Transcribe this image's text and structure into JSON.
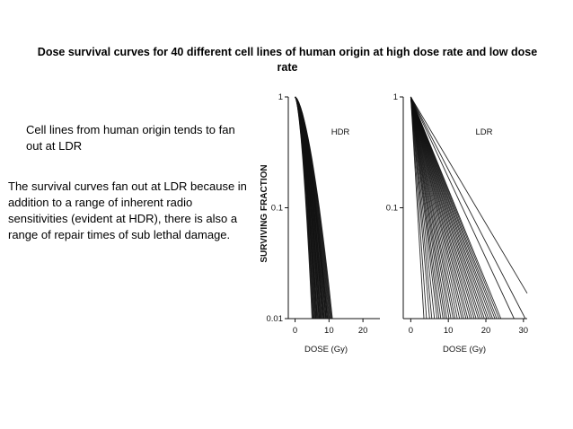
{
  "slide": {
    "title": "Dose survival curves for 40 different cell lines of human origin at high dose rate and low dose rate",
    "note_fan_out": "Cell lines from human origin tends to fan out at LDR",
    "note_explanation": "The survival curves fan out at LDR because in addition to a range of inherent radio sensitivities (evident at HDR), there is also a range of repair times of sub lethal damage."
  },
  "chart_data": [
    {
      "type": "line",
      "panel_label": "HDR",
      "xlabel": "DOSE (Gy)",
      "ylabel": "SURVIVING FRACTION",
      "x_ticks": [
        0,
        10,
        20
      ],
      "y_ticks": [
        1,
        0.1,
        0.01
      ],
      "y_tick_labels": [
        "1",
        "0.1",
        "0.01"
      ],
      "xlim": [
        -2,
        25
      ],
      "ylim": [
        0.01,
        1
      ],
      "y_scale": "log",
      "curve_count": 40,
      "line_color": "#111111",
      "dose_at_surviving_fraction_0_01": [
        5.0,
        5.2,
        5.4,
        5.6,
        5.8,
        6.0,
        6.2,
        6.4,
        6.6,
        6.8,
        7.0,
        7.2,
        7.4,
        7.6,
        7.8,
        8.0,
        8.2,
        8.4,
        8.6,
        8.8,
        9.0,
        9.2,
        9.4,
        9.6,
        9.8,
        10.0,
        10.2,
        10.4,
        10.6,
        10.8,
        11.0,
        5.5,
        6.5,
        7.5,
        8.5,
        9.5,
        6.1,
        7.1,
        8.1,
        9.1
      ]
    },
    {
      "type": "line",
      "panel_label": "LDR",
      "xlabel": "DOSE (Gy)",
      "ylabel": "",
      "x_ticks": [
        0,
        10,
        20,
        30
      ],
      "y_ticks": [
        1,
        0.1
      ],
      "y_tick_labels": [
        "1",
        "0.1"
      ],
      "xlim": [
        -2,
        31
      ],
      "ylim": [
        0.01,
        1
      ],
      "y_scale": "log",
      "curve_count": 40,
      "line_color": "#111111",
      "dose_at_surviving_fraction_0_01": [
        3.5,
        4.2,
        5.0,
        5.6,
        6.3,
        7.0,
        7.5,
        8.0,
        8.6,
        9.1,
        9.6,
        10.2,
        10.7,
        11.3,
        11.8,
        12.4,
        13.0,
        13.6,
        14.1,
        14.7,
        15.2,
        15.8,
        16.3,
        16.9,
        17.4,
        18.0,
        18.5,
        19.1,
        19.6,
        20.2,
        20.7,
        21.3,
        21.8,
        22.4,
        22.9,
        23.5,
        24.0,
        27.5,
        30.5,
        35.0
      ]
    }
  ]
}
